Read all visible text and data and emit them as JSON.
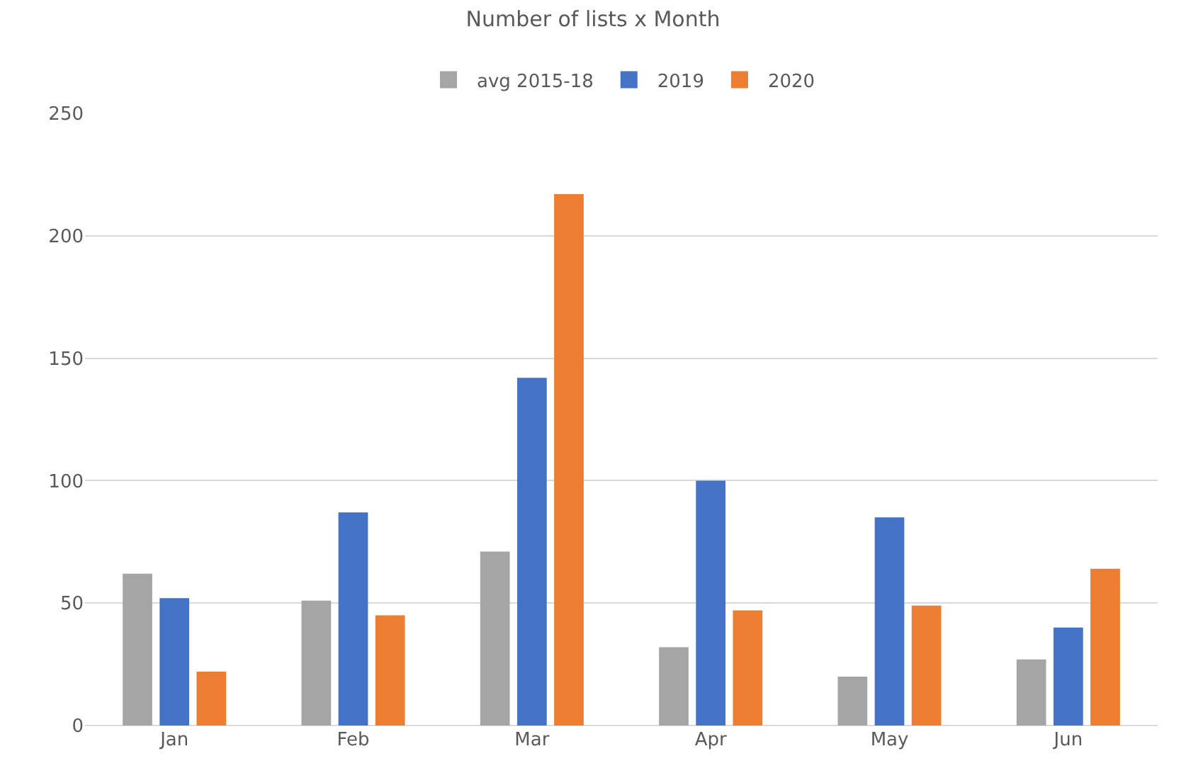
{
  "chart_data": {
    "type": "bar",
    "title": "Number of lists x Month",
    "categories": [
      "Jan",
      "Feb",
      "Mar",
      "Apr",
      "May",
      "Jun"
    ],
    "series": [
      {
        "name": "avg 2015-18",
        "color": "#a5a5a5",
        "values": [
          62,
          51,
          71,
          32,
          20,
          27
        ]
      },
      {
        "name": "2019",
        "color": "#4472c4",
        "values": [
          52,
          87,
          142,
          100,
          85,
          40
        ]
      },
      {
        "name": "2020",
        "color": "#ed7d31",
        "values": [
          22,
          45,
          217,
          47,
          49,
          64
        ]
      }
    ],
    "ylim": [
      0,
      250
    ],
    "yticks": [
      0,
      50,
      100,
      150,
      200,
      250
    ],
    "grid": "y",
    "legend": "top"
  }
}
